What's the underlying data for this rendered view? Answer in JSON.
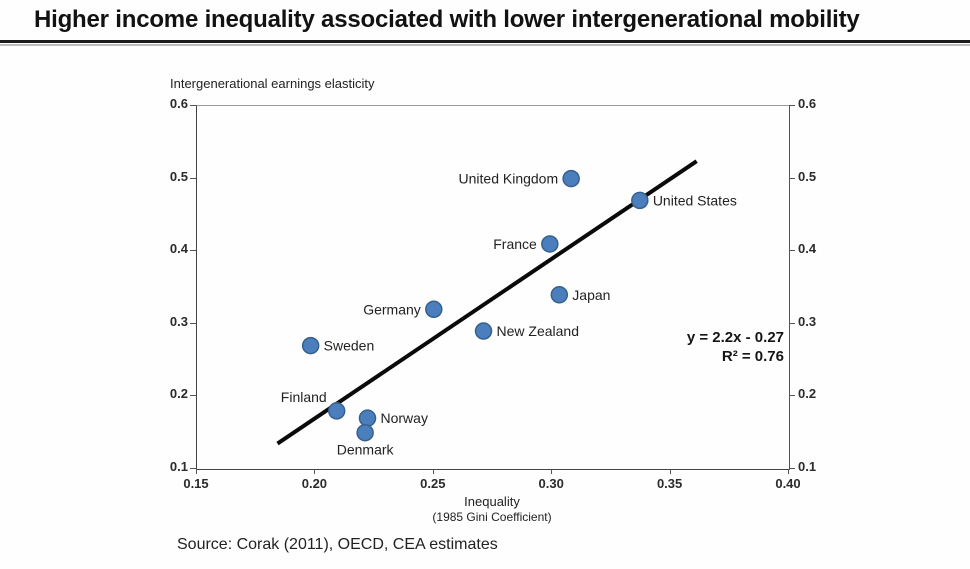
{
  "header": {
    "title": "Higher income inequality associated with lower intergenerational mobility"
  },
  "chart_data": {
    "type": "scatter",
    "title": "Higher income inequality associated with lower intergenerational mobility",
    "y_axis_title": "Intergenerational earnings elasticity",
    "x_axis_title": "Inequality",
    "x_axis_subtitle": "(1985 Gini Coefficient)",
    "xlim": [
      0.15,
      0.4
    ],
    "ylim": [
      0.1,
      0.6
    ],
    "x_ticks": [
      "0.15",
      "0.20",
      "0.25",
      "0.30",
      "0.35",
      "0.40"
    ],
    "y_ticks": [
      "0.6",
      "0.5",
      "0.4",
      "0.3",
      "0.2",
      "0.1"
    ],
    "grid": false,
    "legend": "none",
    "points": [
      {
        "label": "Sweden",
        "x": 0.198,
        "y": 0.27,
        "label_side": "right"
      },
      {
        "label": "Finland",
        "x": 0.209,
        "y": 0.18,
        "label_side": "left-up"
      },
      {
        "label": "Norway",
        "x": 0.222,
        "y": 0.17,
        "label_side": "right"
      },
      {
        "label": "Denmark",
        "x": 0.221,
        "y": 0.15,
        "label_side": "below"
      },
      {
        "label": "Germany",
        "x": 0.25,
        "y": 0.32,
        "label_side": "left"
      },
      {
        "label": "New Zealand",
        "x": 0.271,
        "y": 0.29,
        "label_side": "right"
      },
      {
        "label": "France",
        "x": 0.299,
        "y": 0.41,
        "label_side": "left"
      },
      {
        "label": "Japan",
        "x": 0.303,
        "y": 0.34,
        "label_side": "right"
      },
      {
        "label": "United Kingdom",
        "x": 0.308,
        "y": 0.5,
        "label_side": "left"
      },
      {
        "label": "United States",
        "x": 0.337,
        "y": 0.47,
        "label_side": "right"
      }
    ],
    "trend_line": {
      "x1": 0.184,
      "y1": 0.135,
      "x2": 0.361,
      "y2": 0.524
    },
    "annotation": {
      "equation": "y = 2.2x - 0.27",
      "r_squared": "R² = 0.76"
    },
    "colors": {
      "point_fill": "#4a7ebc",
      "point_edge": "#36618e",
      "trend": "#0a0a0a"
    }
  },
  "footer": {
    "source": "Source: Corak (2011), OECD, CEA estimates"
  }
}
